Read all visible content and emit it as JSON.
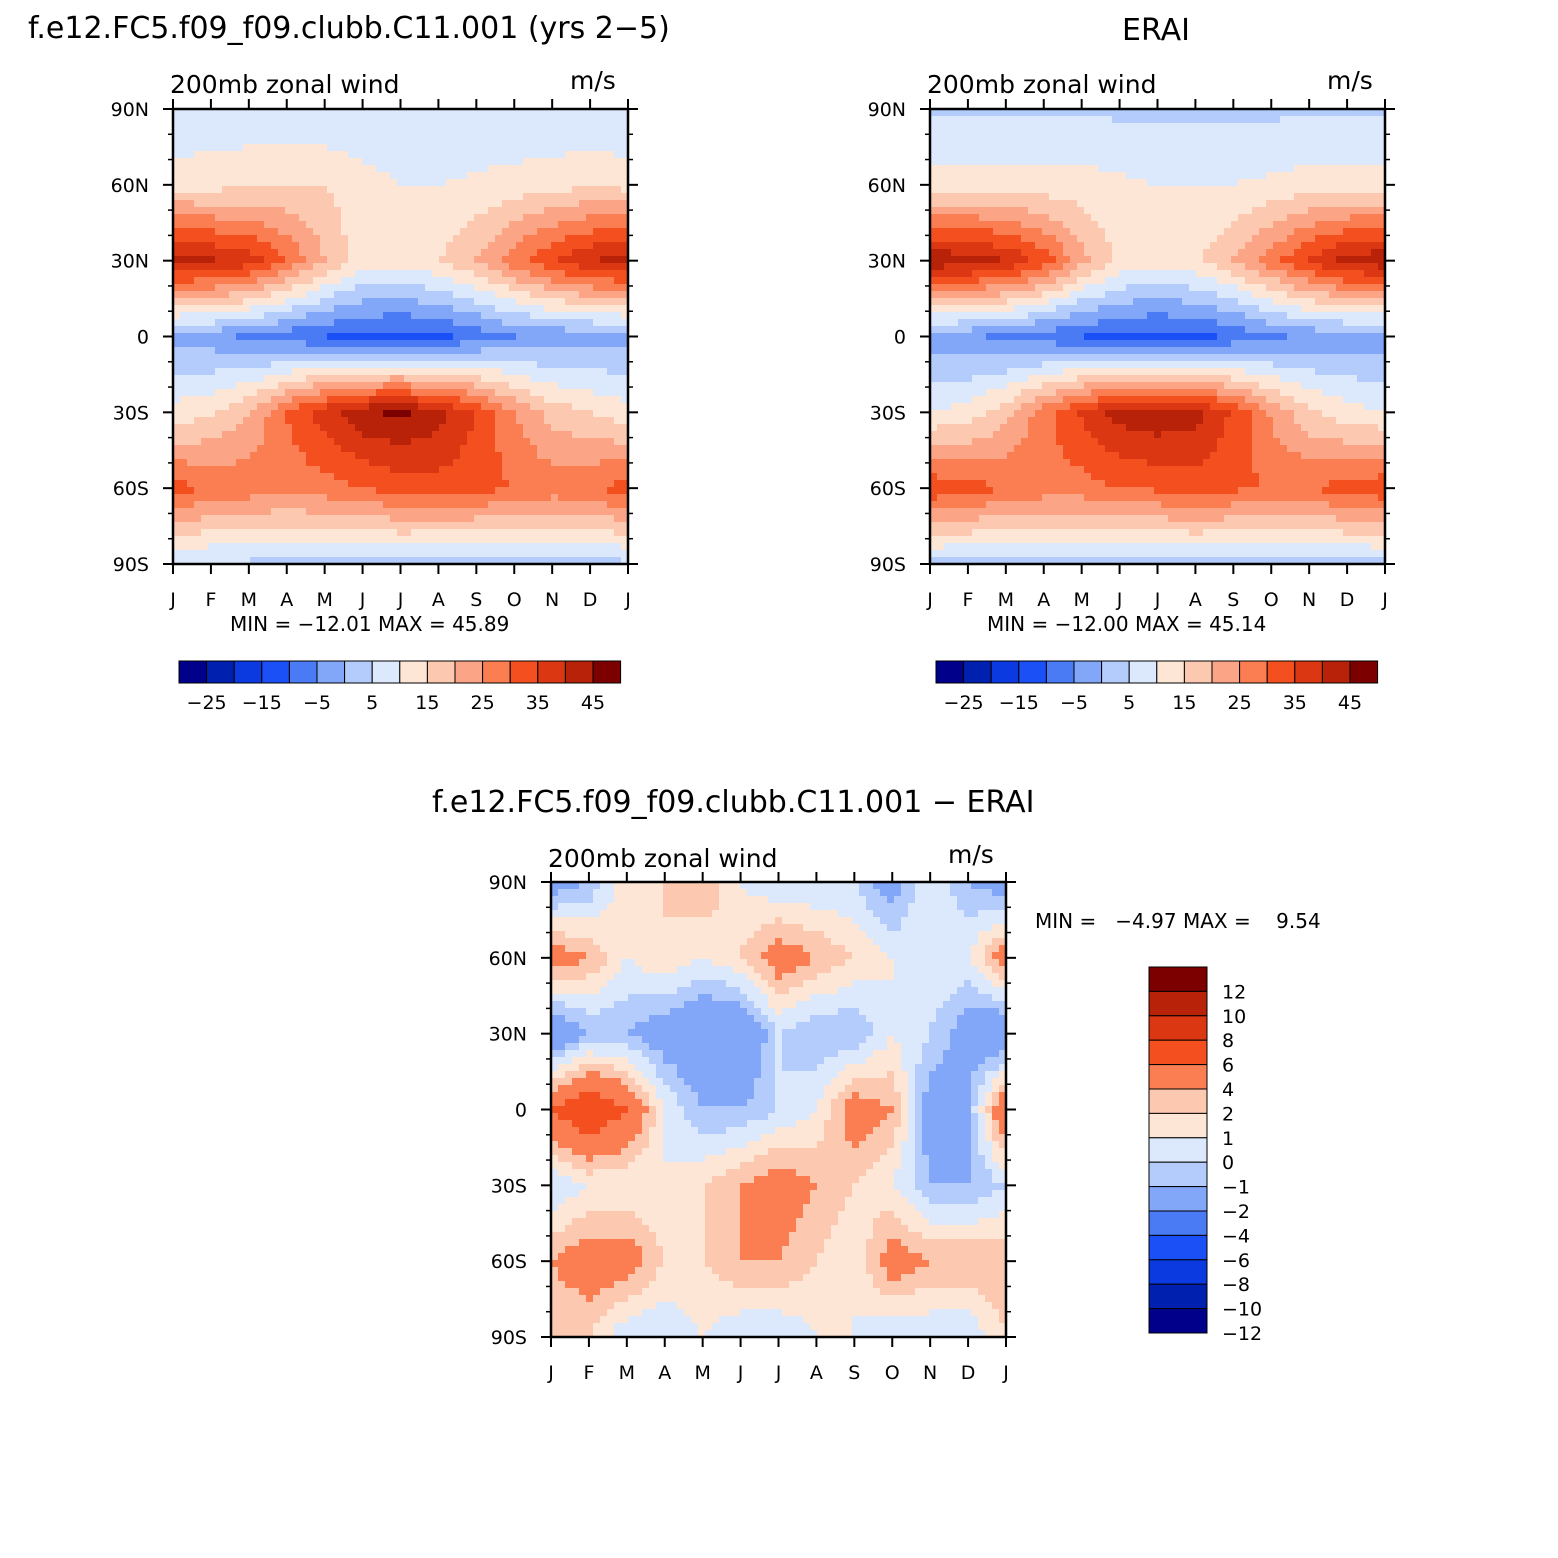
{
  "panels": [
    {
      "id": "model",
      "title": "f.e12.FC5.f09_f09.clubb.C11.001 (yrs 2−5)",
      "left_label": "200mb zonal wind",
      "right_label": "m/s",
      "stats": "MIN = −12.01 MAX =   45.89"
    },
    {
      "id": "obs",
      "title": "ERAI",
      "left_label": "200mb zonal wind",
      "right_label": "m/s",
      "stats": "MIN = −12.00 MAX =   45.14"
    },
    {
      "id": "diff",
      "title": "f.e12.FC5.f09_f09.clubb.C11.001 − ERAI",
      "left_label": "200mb zonal wind",
      "right_label": "m/s",
      "stats": "MIN =   −4.97 MAX =    9.54"
    }
  ],
  "axes": {
    "y_ticks": [
      "90N",
      "60N",
      "30N",
      "0",
      "30S",
      "60S",
      "90S"
    ],
    "x_ticks": [
      "J",
      "F",
      "M",
      "A",
      "M",
      "J",
      "J",
      "A",
      "S",
      "O",
      "N",
      "D",
      "J"
    ]
  },
  "colorbar_top": {
    "colors": [
      "#00008b",
      "#0021b0",
      "#0a3ae0",
      "#1a50f5",
      "#4a7bf5",
      "#82a6f8",
      "#b4ccfb",
      "#dce9fc",
      "#fde6d6",
      "#fcc8b0",
      "#fba486",
      "#fb7e52",
      "#f4501f",
      "#dc3713",
      "#b82208",
      "#7c0000"
    ],
    "labels": [
      "−25",
      "−15",
      "−5",
      "5",
      "15",
      "25",
      "35",
      "45"
    ],
    "levels": [
      -30,
      -25,
      -20,
      -15,
      -10,
      -5,
      0,
      5,
      10,
      15,
      20,
      25,
      30,
      35,
      40,
      45
    ]
  },
  "colorbar_diff": {
    "colors": [
      "#7c0000",
      "#b82208",
      "#dc3713",
      "#f4501f",
      "#fb7e52",
      "#fcc8b0",
      "#fde6d6",
      "#dce9fc",
      "#b4ccfb",
      "#82a6f8",
      "#4a7bf5",
      "#1a50f5",
      "#0a3ae0",
      "#0021b0",
      "#00008b"
    ],
    "labels": [
      "12",
      "10",
      "8",
      "6",
      "4",
      "2",
      "1",
      "0",
      "−1",
      "−2",
      "−4",
      "−6",
      "−8",
      "−10",
      "−12"
    ]
  },
  "chart_data": [
    {
      "type": "heatmap",
      "title": "f.e12.FC5.f09_f09.clubb.C11.001 (yrs 2−5)",
      "subtitle": "200mb zonal wind",
      "units": "m/s",
      "x": [
        "J",
        "F",
        "M",
        "A",
        "M",
        "J",
        "J",
        "A",
        "S",
        "O",
        "N",
        "D",
        "J"
      ],
      "y": [
        "90N",
        "60N",
        "30N",
        "0",
        "30S",
        "60S",
        "90S"
      ],
      "min": -12.01,
      "max": 45.89,
      "values": [
        [
          5,
          6,
          6,
          6,
          5,
          5,
          5,
          5,
          5,
          5,
          5,
          5,
          5
        ],
        [
          13,
          13,
          14,
          15,
          15,
          12,
          10,
          10,
          11,
          12,
          13,
          14,
          13
        ],
        [
          42,
          41,
          38,
          30,
          20,
          12,
          12,
          15,
          20,
          28,
          35,
          40,
          42
        ],
        [
          -2,
          -3,
          -6,
          -8,
          -10,
          -11,
          -12,
          -11,
          -8,
          -5,
          -4,
          -3,
          -2
        ],
        [
          12,
          14,
          20,
          30,
          38,
          44,
          46,
          42,
          35,
          25,
          18,
          15,
          12
        ],
        [
          32,
          30,
          28,
          27,
          28,
          30,
          32,
          33,
          32,
          30,
          28,
          30,
          32
        ],
        [
          4,
          4,
          4,
          3,
          3,
          3,
          3,
          2,
          2,
          2,
          2,
          2,
          4
        ]
      ]
    },
    {
      "type": "heatmap",
      "title": "ERAI",
      "subtitle": "200mb zonal wind",
      "units": "m/s",
      "x": [
        "J",
        "F",
        "M",
        "A",
        "M",
        "J",
        "J",
        "A",
        "S",
        "O",
        "N",
        "D",
        "J"
      ],
      "y": [
        "90N",
        "60N",
        "30N",
        "0",
        "30S",
        "60S",
        "90S"
      ],
      "min": -12.0,
      "max": 45.14,
      "values": [
        [
          4,
          4,
          4,
          4,
          4,
          4,
          4,
          4,
          4,
          4,
          4,
          4,
          4
        ],
        [
          12,
          12,
          12,
          12,
          12,
          11,
          10,
          10,
          10,
          11,
          12,
          12,
          12
        ],
        [
          44,
          43,
          40,
          33,
          22,
          14,
          12,
          14,
          20,
          28,
          36,
          42,
          44
        ],
        [
          -3,
          -4,
          -6,
          -8,
          -10,
          -11,
          -12,
          -11,
          -9,
          -6,
          -4,
          -3,
          -3
        ],
        [
          10,
          12,
          18,
          28,
          36,
          42,
          44,
          42,
          34,
          24,
          16,
          12,
          10
        ],
        [
          34,
          32,
          30,
          28,
          28,
          30,
          31,
          32,
          31,
          30,
          30,
          32,
          34
        ],
        [
          3,
          3,
          3,
          3,
          3,
          3,
          3,
          3,
          3,
          3,
          3,
          3,
          3
        ]
      ]
    },
    {
      "type": "heatmap",
      "title": "f.e12.FC5.f09_f09.clubb.C11.001 − ERAI",
      "subtitle": "200mb zonal wind",
      "units": "m/s",
      "x": [
        "J",
        "F",
        "M",
        "A",
        "M",
        "J",
        "J",
        "A",
        "S",
        "O",
        "N",
        "D",
        "J"
      ],
      "y": [
        "90N",
        "60N",
        "30N",
        "0",
        "30S",
        "60S",
        "90S"
      ],
      "min": -4.97,
      "max": 9.54,
      "values": [
        [
          -3,
          -2,
          1,
          1,
          2,
          0,
          -1,
          -1,
          -1,
          -3,
          0,
          -2,
          -3
        ],
        [
          3,
          2,
          0,
          1,
          0,
          1,
          3,
          2,
          1,
          0,
          0,
          0,
          3
        ],
        [
          -4,
          -2,
          -2,
          -3,
          -4,
          -4,
          -1,
          -2,
          -2,
          0,
          -1,
          -3,
          -4
        ],
        [
          4,
          6,
          4,
          0,
          -2,
          -2,
          -1,
          0,
          3,
          2,
          -3,
          -2,
          4
        ],
        [
          -1,
          0,
          0,
          0,
          1,
          2,
          3,
          2,
          1,
          0,
          -2,
          -2,
          -1
        ],
        [
          2,
          3,
          3,
          1,
          1,
          2,
          2,
          1,
          0,
          3,
          2,
          2,
          2
        ],
        [
          1,
          1,
          -1,
          -1,
          0,
          -1,
          -1,
          0,
          0,
          -1,
          -1,
          -1,
          1
        ]
      ]
    }
  ]
}
